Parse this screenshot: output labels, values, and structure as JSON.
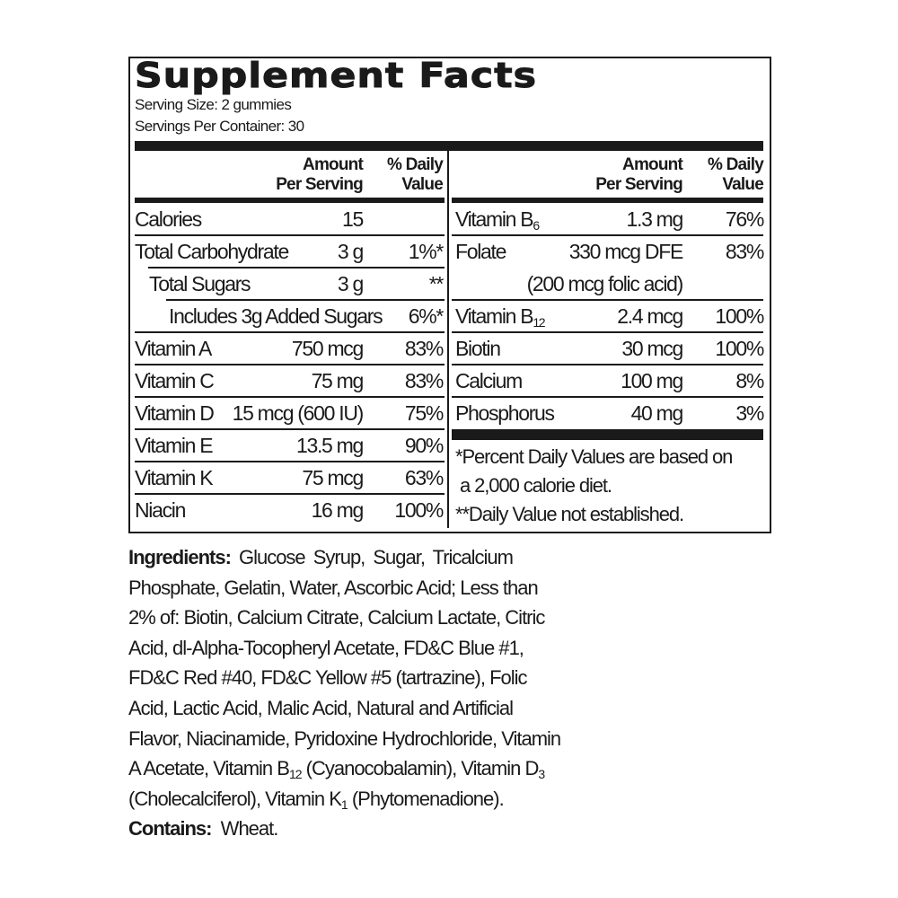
{
  "title": "Supplement Facts",
  "serving_size": "Serving Size:  2 gummies",
  "servings_per_container": "Servings Per Container: 30",
  "headers": {
    "amount_1": "Amount",
    "amount_2": "Per Serving",
    "dv_1": "% Daily",
    "dv_2": "Value"
  },
  "left_rows": [
    {
      "name": "Calories",
      "amount": "15",
      "dv": ""
    },
    {
      "name": "Total Carbohydrate",
      "amount": "3 g",
      "dv": "1%*"
    },
    {
      "name": "Total Sugars",
      "amount": "3 g",
      "dv": "**"
    },
    {
      "name": "Includes 3g Added Sugars",
      "amount": "",
      "dv": "6%*"
    },
    {
      "name": "Vitamin A",
      "amount": "750 mcg",
      "dv": "83%"
    },
    {
      "name": "Vitamin C",
      "amount": "75 mg",
      "dv": "83%"
    },
    {
      "name": "Vitamin D",
      "amount": "15 mcg (600 IU)",
      "dv": "75%"
    },
    {
      "name": "Vitamin E",
      "amount": "13.5 mg",
      "dv": "90%"
    },
    {
      "name": "Vitamin K",
      "amount": "75 mcg",
      "dv": "63%"
    },
    {
      "name": "Niacin",
      "amount": "16 mg",
      "dv": "100%"
    }
  ],
  "right_rows": [
    {
      "name": "Vitamin B",
      "sub": "6",
      "amount": "1.3 mg",
      "dv": "76%"
    },
    {
      "name": "Folate",
      "amount": "330 mcg DFE",
      "amount_2": "(200 mcg folic acid)",
      "dv": "83%"
    },
    {
      "name": "Vitamin B",
      "sub": "12",
      "amount": "2.4 mcg",
      "dv": "100%"
    },
    {
      "name": "Biotin",
      "amount": "30 mcg",
      "dv": "100%"
    },
    {
      "name": "Calcium",
      "amount": "100 mg",
      "dv": "8%"
    },
    {
      "name": "Phosphorus",
      "amount": "40 mg",
      "dv": "3%"
    }
  ],
  "footnotes": [
    "*Percent Daily Values are based on",
    " a 2,000 calorie diet.",
    "**Daily Value not established."
  ],
  "ingredients": {
    "label": "Ingredients:",
    "lines": [
      [
        {
          "t": " Glucose Syrup, Sugar, Tricalcium"
        }
      ],
      [
        {
          "t": "Phosphate, Gelatin, Water, Ascorbic Acid; Less than"
        }
      ],
      [
        {
          "t": "2% of: Biotin, Calcium Citrate, Calcium Lactate, Citric"
        }
      ],
      [
        {
          "t": "Acid, dl-Alpha-Tocopheryl Acetate, FD&C Blue #1,"
        }
      ],
      [
        {
          "t": "FD&C Red #40, FD&C Yellow #5 (tartrazine), Folic"
        }
      ],
      [
        {
          "t": "Acid, Lactic Acid, Malic Acid, Natural and Artificial"
        }
      ],
      [
        {
          "t": "Flavor, Niacinamide, Pyridoxine Hydrochloride, Vitamin"
        }
      ],
      [
        {
          "t": "A Acetate, Vitamin B"
        },
        {
          "t": "12",
          "sub": true
        },
        {
          "t": " (Cyanocobalamin), Vitamin D"
        },
        {
          "t": "3",
          "sub": true
        }
      ],
      [
        {
          "t": "(Cholecalciferol), Vitamin K"
        },
        {
          "t": "1",
          "sub": true
        },
        {
          "t": " (Phytomenadione)."
        }
      ]
    ]
  },
  "contains": {
    "label": "Contains:",
    "value": "  Wheat."
  }
}
